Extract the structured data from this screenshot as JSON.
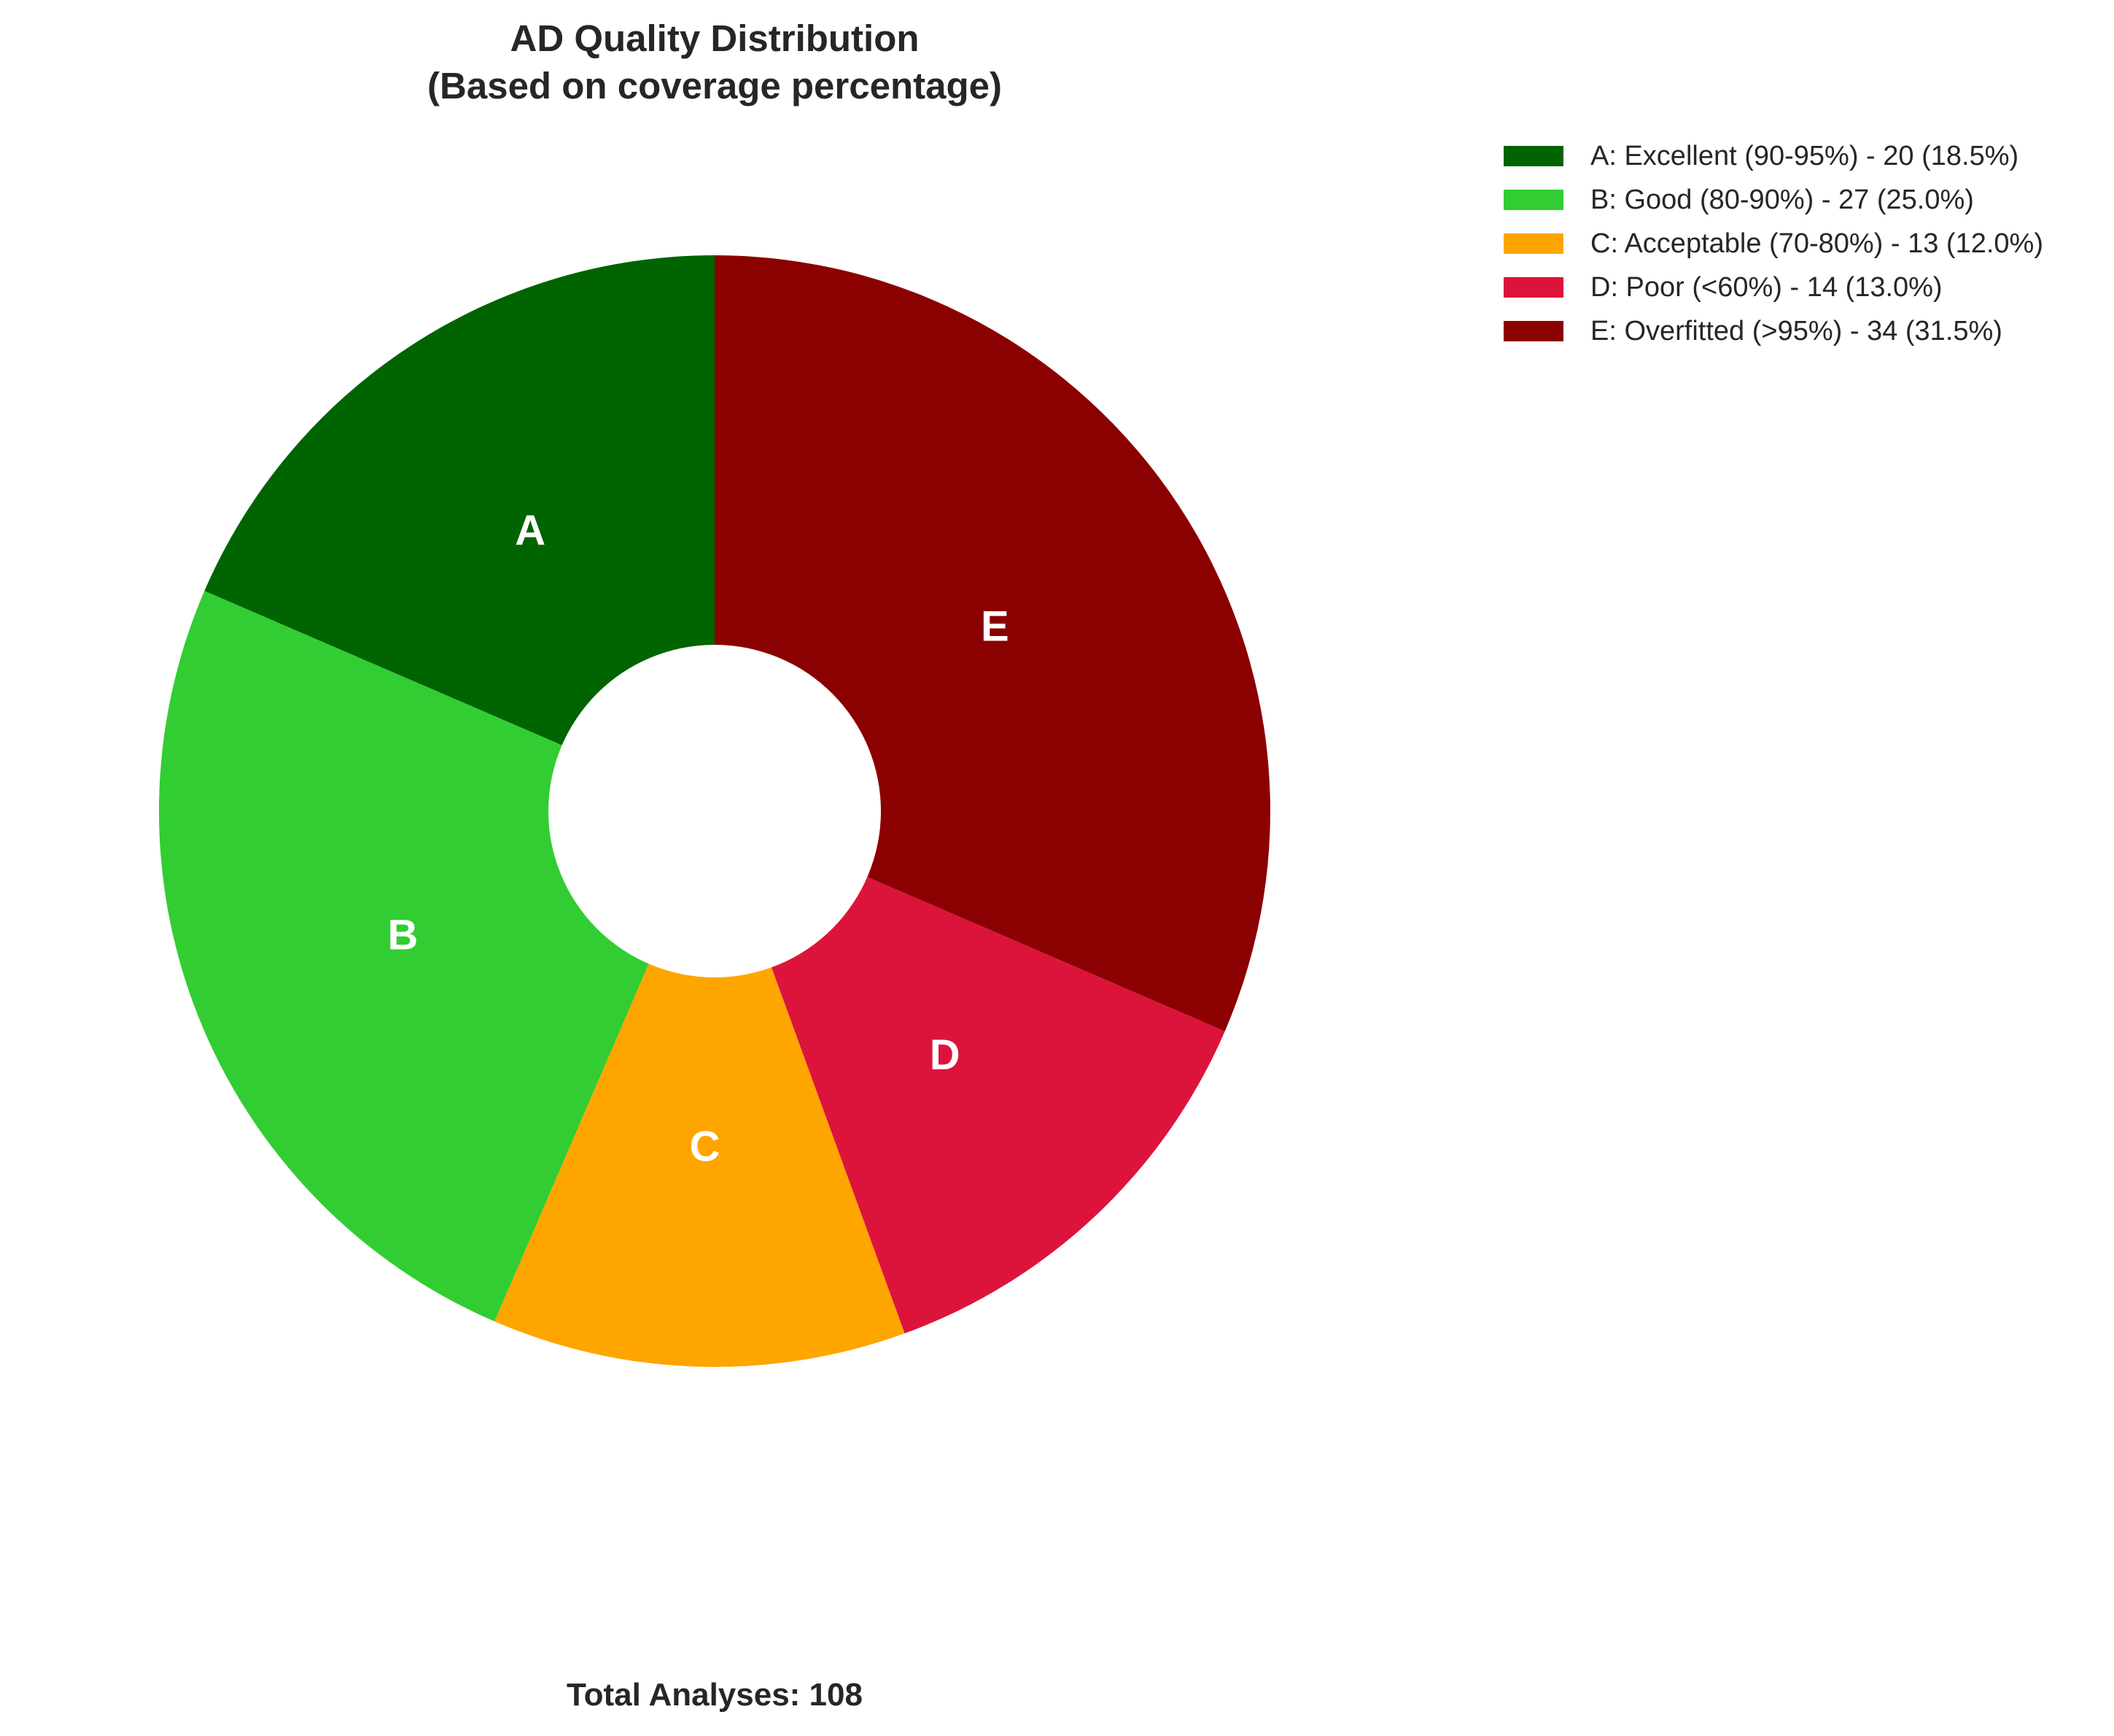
{
  "chart_data": {
    "type": "pie",
    "style": "donut",
    "title": "AD Quality Distribution",
    "subtitle": "(Based on coverage percentage)",
    "start_angle_deg": 90,
    "direction": "counterclockwise",
    "slices": [
      {
        "label": "A",
        "legend": "A: Excellent (90-95%) - 20 (18.5%)",
        "value": 20,
        "percent": 18.5,
        "color": "#006400"
      },
      {
        "label": "B",
        "legend": "B: Good (80-90%) - 27 (25.0%)",
        "value": 27,
        "percent": 25.0,
        "color": "#32CD32"
      },
      {
        "label": "C",
        "legend": "C: Acceptable (70-80%) - 13 (12.0%)",
        "value": 13,
        "percent": 12.0,
        "color": "#FFA500"
      },
      {
        "label": "D",
        "legend": "D: Poor (<60%) - 14 (13.0%)",
        "value": 14,
        "percent": 13.0,
        "color": "#DC143C"
      },
      {
        "label": "E",
        "legend": "E: Overfitted (>95%) - 34 (31.5%)",
        "value": 34,
        "percent": 31.5,
        "color": "#8B0000"
      }
    ],
    "legend_position": "top-right",
    "footer": "Total Analyses: 108",
    "total": 108
  }
}
